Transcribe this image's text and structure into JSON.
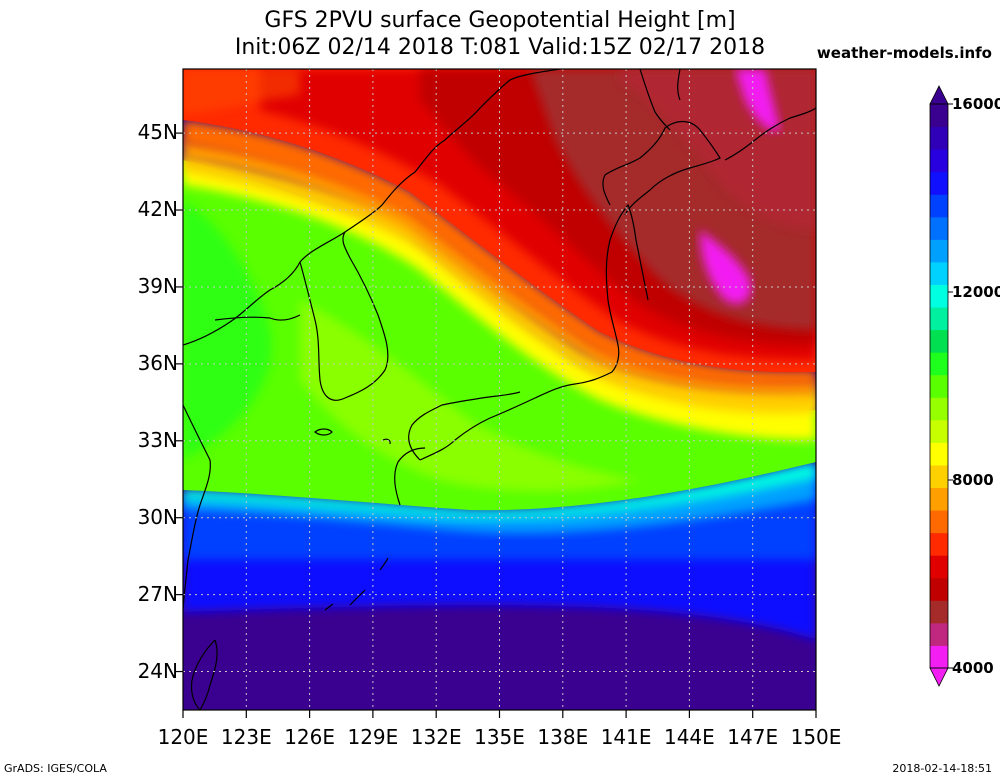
{
  "title": {
    "line1": "GFS 2PVU surface Geopotential Height [m]",
    "line2": "Init:06Z 02/14 2018 T:081 Valid:15Z 02/17 2018"
  },
  "source": "weather-models.info",
  "footer": {
    "left": "GrADS: IGES/COLA",
    "right": "2018-02-14-18:51"
  },
  "axes": {
    "latitude_labels": [
      "45N",
      "42N",
      "39N",
      "36N",
      "33N",
      "30N",
      "27N",
      "24N"
    ],
    "latitude_values": [
      45,
      42,
      39,
      36,
      33,
      30,
      27,
      24
    ],
    "longitude_labels": [
      "120E",
      "123E",
      "126E",
      "129E",
      "132E",
      "135E",
      "138E",
      "141E",
      "144E",
      "147E",
      "150E"
    ],
    "longitude_values": [
      120,
      123,
      126,
      129,
      132,
      135,
      138,
      141,
      144,
      147,
      150
    ],
    "lon_range": [
      120,
      150
    ],
    "lat_range": [
      22.5,
      47.5
    ]
  },
  "colorbar": {
    "labels": [
      "16000",
      "12000",
      "8000",
      "4000"
    ],
    "label_values": [
      16000,
      12000,
      8000,
      4000
    ],
    "min": 4000,
    "max": 16000,
    "step": 500,
    "colors": [
      "#f21ef2",
      "#c02880",
      "#a52a2a",
      "#c00000",
      "#e00000",
      "#ff2a00",
      "#ff6a00",
      "#ffa000",
      "#ffd000",
      "#ffff00",
      "#c8ff00",
      "#96ff00",
      "#5aff00",
      "#1eff1e",
      "#00e050",
      "#00f0a0",
      "#00ffe0",
      "#00d2ff",
      "#00a0ff",
      "#0070ff",
      "#0040ff",
      "#1010ff",
      "#2800e0",
      "#3000b8",
      "#3a0090"
    ]
  },
  "chart_data": {
    "type": "heatmap",
    "title": "GFS 2PVU surface Geopotential Height [m]",
    "subtitle": "Init:06Z 02/14 2018 T:081 Valid:15Z 02/17 2018",
    "variable": "Geopotential Height [m]",
    "xlim": [
      120,
      150
    ],
    "ylim": [
      22.5,
      47.5
    ],
    "value_range": [
      4000,
      16000
    ],
    "features": [
      {
        "label": "low (red/brown) trough",
        "region": "north of jet, over N Japan"
      },
      {
        "label": "high (blue/purple) tropics",
        "region": "south of ~30N"
      }
    ]
  }
}
